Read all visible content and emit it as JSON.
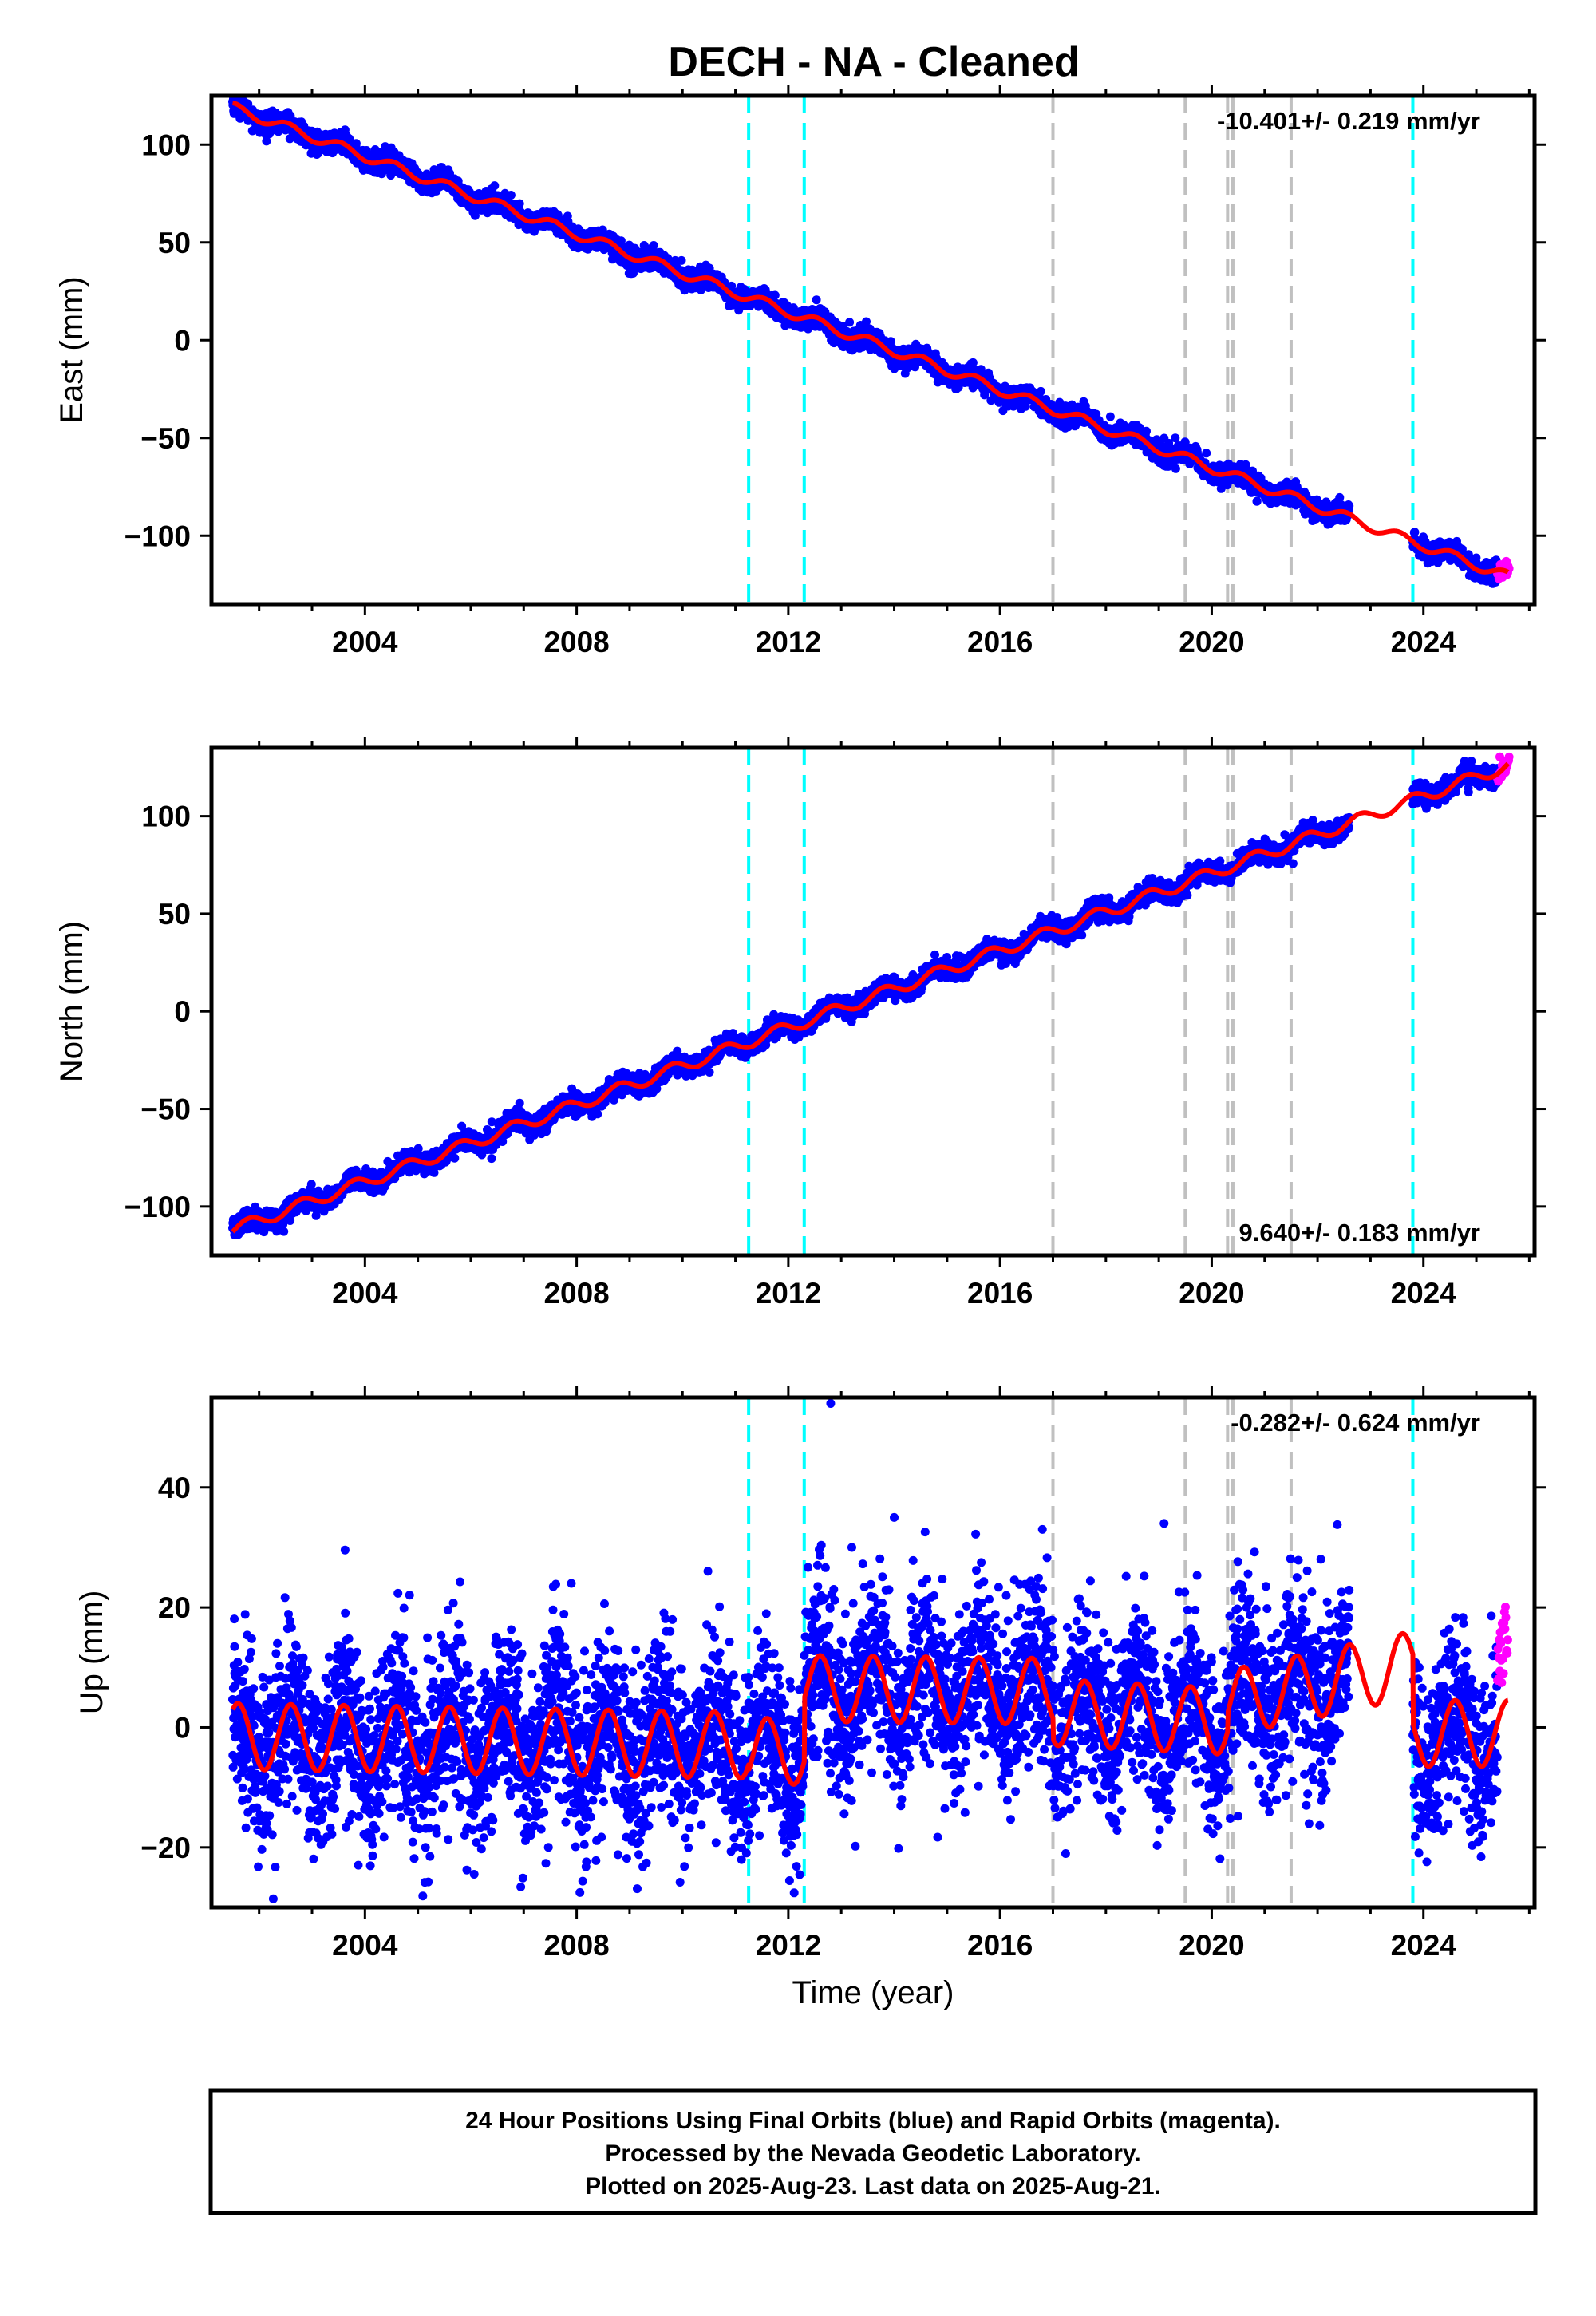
{
  "title": "DECH  - NA - Cleaned",
  "footer": {
    "line1": "24 Hour Positions Using Final Orbits (blue) and Rapid Orbits (magenta).",
    "line2": "Processed by the Nevada Geodetic Laboratory.",
    "line3": "Plotted on 2025-Aug-23. Last data on 2025-Aug-21."
  },
  "colors": {
    "final_orbits": "#0000ff",
    "rapid_orbits": "#ff00ff",
    "model": "#ff0000",
    "equipment_change": "#00ffff",
    "earthquake": "#c0c0c0"
  },
  "chart_data": [
    {
      "type": "scatter",
      "panel": "east",
      "ylabel": "East (mm)",
      "xlabel": "",
      "xlim": [
        2001.1,
        2026.1
      ],
      "ylim": [
        -135,
        125
      ],
      "xticks": [
        2004,
        2008,
        2012,
        2016,
        2020,
        2024
      ],
      "yticks": [
        -100,
        -50,
        0,
        50,
        100
      ],
      "rate": "-10.401+/- 0.219 mm/yr",
      "rate_position": "top-right",
      "model": {
        "start_year": 2001.5,
        "start_value": 119,
        "end_year": 2025.6,
        "end_value": -121,
        "annual_amplitude": 2.5,
        "annual_phase_year": 0.3
      },
      "data_gap": [
        2022.6,
        2023.8
      ],
      "final_orbits_end": 2025.4,
      "scatter_noise": 2.5,
      "vlines_cyan": [
        2011.25,
        2012.3,
        2023.8
      ],
      "vlines_gray": [
        2017.0,
        2019.5,
        2020.3,
        2020.4,
        2021.5
      ]
    },
    {
      "type": "scatter",
      "panel": "north",
      "ylabel": "North (mm)",
      "xlabel": "",
      "xlim": [
        2001.1,
        2026.1
      ],
      "ylim": [
        -125,
        135
      ],
      "xticks": [
        2004,
        2008,
        2012,
        2016,
        2020,
        2024
      ],
      "yticks": [
        -100,
        -50,
        0,
        50,
        100
      ],
      "rate": "9.640+/- 0.183 mm/yr",
      "rate_position": "bottom-right",
      "model": {
        "start_year": 2001.5,
        "start_value": -112,
        "end_year": 2025.6,
        "end_value": 126,
        "annual_amplitude": 3.0,
        "annual_phase_year": 0.55
      },
      "data_gap": [
        2022.6,
        2023.8
      ],
      "final_orbits_end": 2025.4,
      "scatter_noise": 2.5,
      "vlines_cyan": [
        2011.25,
        2012.3,
        2023.8
      ],
      "vlines_gray": [
        2017.0,
        2019.5,
        2020.3,
        2020.4,
        2021.5
      ]
    },
    {
      "type": "scatter",
      "panel": "up",
      "ylabel": "Up (mm)",
      "xlabel": "Time (year)",
      "xlim": [
        2001.1,
        2026.1
      ],
      "ylim": [
        -30,
        55
      ],
      "xticks": [
        2004,
        2008,
        2012,
        2016,
        2020,
        2024
      ],
      "yticks": [
        -20,
        0,
        20,
        40
      ],
      "rate": "-0.282+/- 0.624 mm/yr",
      "rate_position": "top-right",
      "model": {
        "annual_amplitude": 5.5,
        "annual_phase_year": 0.35,
        "segments": [
          {
            "start": 2001.5,
            "end": 2011.25,
            "offset_start": -1.5,
            "offset_end": -3.0
          },
          {
            "start": 2011.25,
            "end": 2012.3,
            "offset_start": -4.0,
            "offset_end": -4.0
          },
          {
            "start": 2012.3,
            "end": 2017.0,
            "offset_start": 6.5,
            "offset_end": 6.0
          },
          {
            "start": 2017.0,
            "end": 2020.3,
            "offset_start": 2.5,
            "offset_end": 1.0
          },
          {
            "start": 2020.3,
            "end": 2023.8,
            "offset_start": 4.0,
            "offset_end": 10.5
          },
          {
            "start": 2023.8,
            "end": 2025.6,
            "offset_start": -1.0,
            "offset_end": -1.0
          }
        ]
      },
      "data_gap": [
        2022.6,
        2023.8
      ],
      "final_orbits_end": 2025.4,
      "scatter_noise": 7.5,
      "outliers": [
        [
          2012.8,
          54
        ],
        [
          2013.2,
          30
        ],
        [
          2016.8,
          33
        ],
        [
          2019.1,
          34
        ],
        [
          2014.0,
          35
        ],
        [
          2007.9,
          24
        ]
      ],
      "vlines_cyan": [
        2011.25,
        2012.3,
        2023.8
      ],
      "vlines_gray": [
        2017.0,
        2019.5,
        2020.3,
        2020.4,
        2021.5
      ]
    }
  ]
}
